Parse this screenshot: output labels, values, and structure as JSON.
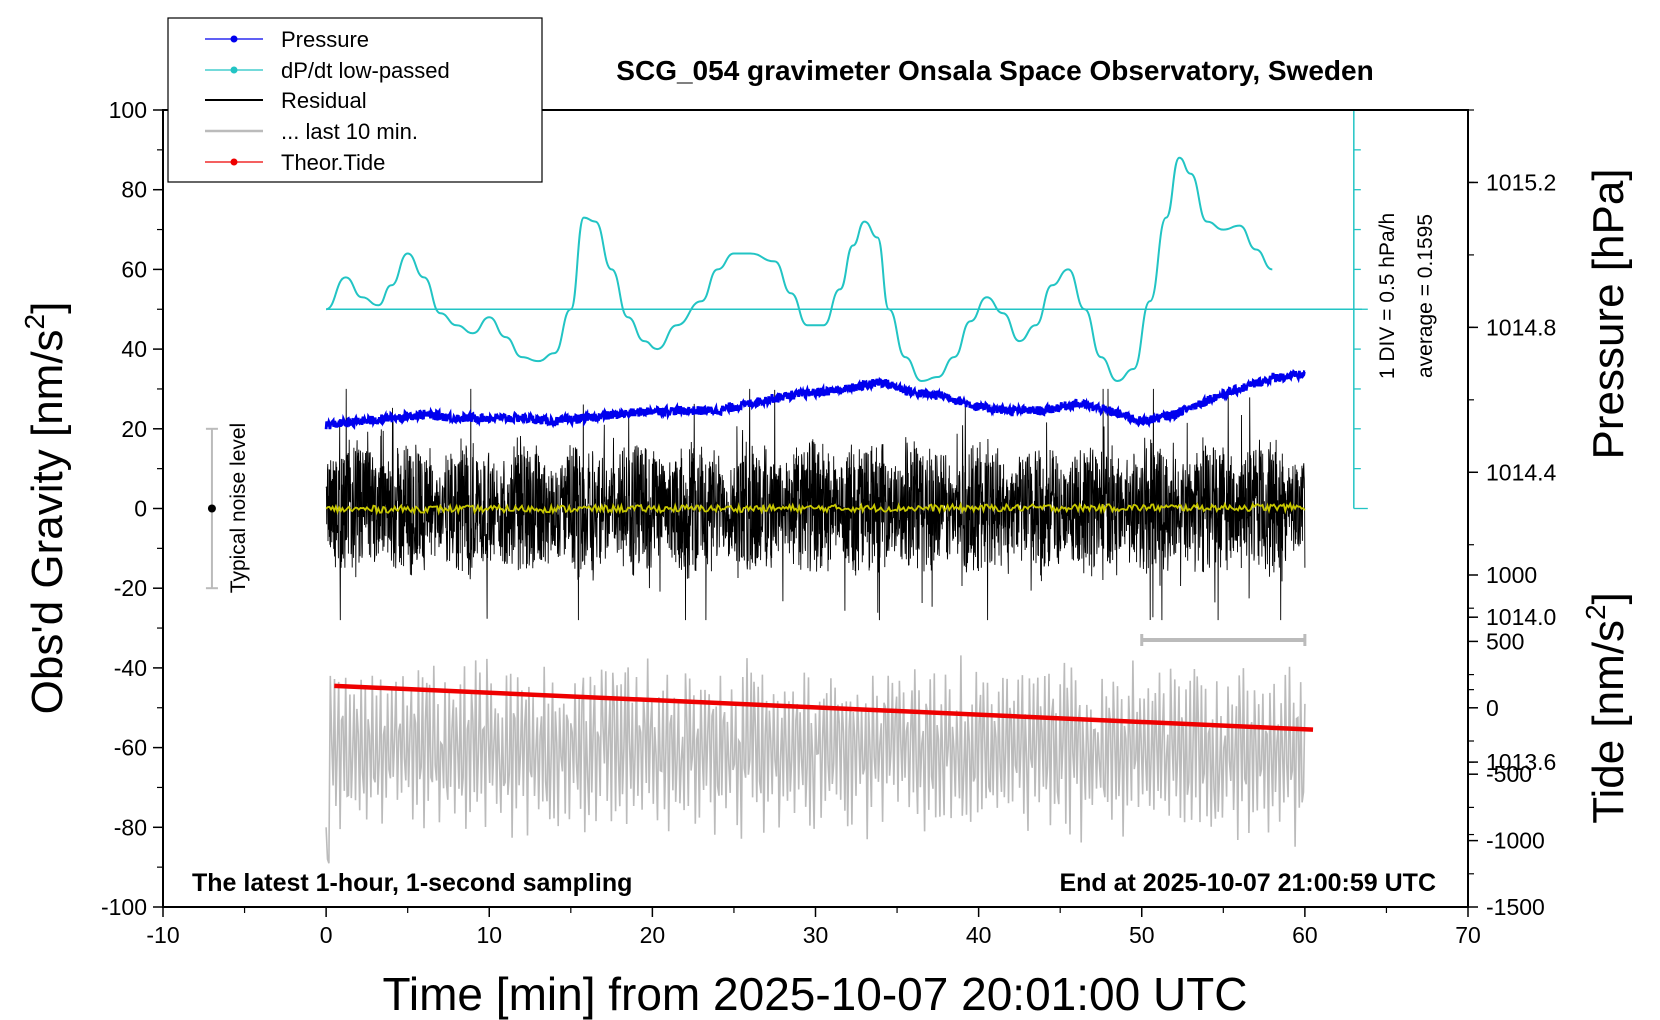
{
  "chart_data": {
    "type": "line",
    "title": "SCG_054 gravimeter Onsala Space Observatory, Sweden",
    "xlabel": "Time [min] from 2025-10-07 20:01:00 UTC",
    "ylabel_main": "Obs'd Gravity [nm/s",
    "ylabel_main_sup": "2",
    "ylabel_main_end": "]",
    "ylabel_pressure": "Pressure [hPa]",
    "ylabel_tide": "Tide [nm/s",
    "ylabel_tide_sup": "2",
    "ylabel_tide_end": "]",
    "xlim": [
      -10,
      70
    ],
    "ylim": [
      -100,
      100
    ],
    "x_ticks": [
      "-10",
      "0",
      "10",
      "20",
      "30",
      "40",
      "50",
      "60",
      "70"
    ],
    "y_ticks": [
      "100",
      "80",
      "60",
      "40",
      "20",
      "0",
      "-20",
      "-40",
      "-60",
      "-80",
      "-100"
    ],
    "pressure_axis": {
      "range": [
        1013.2,
        1015.4
      ],
      "ticks": [
        "1015.2",
        "1014.8",
        "1014.4",
        "1014.0",
        "1013.6"
      ]
    },
    "tide_axis": {
      "range": [
        -1500,
        1000
      ],
      "ticks": [
        "1000",
        "500",
        "0",
        "-500",
        "-1000",
        "-1500"
      ]
    },
    "dpdt_scale": {
      "label": "1 DIV = 0.5 hPa/h",
      "average": "average = 0.1595",
      "x": 63
    },
    "noise_bar": {
      "label": "Typical noise level",
      "x": -7,
      "center": 0,
      "half_range": 20
    },
    "last10_bar": {
      "x_start": 50,
      "x_end": 60,
      "y": -33
    },
    "note_left": "The latest 1-hour, 1-second sampling",
    "note_right": "End at 2025-10-07 21:00:59 UTC",
    "legend": {
      "position": "top-left",
      "items": [
        {
          "name": "Pressure",
          "color": "#0000ee",
          "marker": true
        },
        {
          "name": "dP/dt low-passed",
          "color": "#22c4c4",
          "marker": true
        },
        {
          "name": "Residual",
          "color": "#000000",
          "marker": false
        },
        {
          "name": "... last 10 min.",
          "color": "#bbbbbb",
          "marker": false
        },
        {
          "name": "Theor.Tide",
          "color": "#ee0000",
          "marker": true
        }
      ]
    },
    "series": [
      {
        "name": "Pressure",
        "color": "#0000ee",
        "x": [
          0,
          2,
          4,
          6,
          8,
          10,
          12,
          14,
          16,
          18,
          20,
          22,
          24,
          26,
          28,
          30,
          32,
          34,
          36,
          38,
          40,
          42,
          44,
          46,
          48,
          50,
          52,
          54,
          56,
          58,
          60
        ],
        "values": [
          1014.53,
          1014.54,
          1014.55,
          1014.56,
          1014.55,
          1014.55,
          1014.55,
          1014.54,
          1014.55,
          1014.56,
          1014.57,
          1014.57,
          1014.57,
          1014.59,
          1014.61,
          1014.62,
          1014.63,
          1014.65,
          1014.62,
          1014.61,
          1014.58,
          1014.57,
          1014.57,
          1014.59,
          1014.57,
          1014.54,
          1014.56,
          1014.6,
          1014.63,
          1014.66,
          1014.67
        ]
      },
      {
        "name": "dP/dt low-passed",
        "color": "#22c4c4",
        "x": [
          0,
          1.2,
          2.2,
          3.2,
          4,
          5,
          6,
          7,
          8,
          9,
          10,
          11,
          12,
          13,
          14,
          15,
          15.8,
          16.5,
          17.5,
          18.5,
          19.5,
          20.3,
          21.5,
          23,
          24,
          25,
          26,
          27.5,
          28.5,
          29.5,
          30.5,
          31.5,
          32.3,
          33,
          33.8,
          34.5,
          35.5,
          36.5,
          37.5,
          38.5,
          39.5,
          40.5,
          41.5,
          42.5,
          43.5,
          44.5,
          45.5,
          46.5,
          47.5,
          48.5,
          49.5,
          50.5,
          51.5,
          52.3,
          53,
          54,
          55,
          56,
          57,
          58
        ],
        "values": [
          50,
          58,
          53,
          51,
          56,
          64,
          58,
          49,
          46,
          44,
          48,
          43,
          38,
          37,
          39,
          50,
          73,
          72,
          60,
          48,
          42,
          40,
          46,
          52,
          60,
          64,
          64,
          62,
          54,
          46,
          46,
          55,
          66,
          72,
          68,
          50,
          38,
          32,
          33,
          38,
          47,
          53,
          49,
          42,
          46,
          56,
          60,
          50,
          38,
          32,
          35,
          52,
          73,
          88,
          84,
          72,
          70,
          71,
          65,
          60
        ]
      },
      {
        "name": "Residual",
        "color": "#000000",
        "x_range": [
          0,
          60
        ],
        "envelope": {
          "typical": 12,
          "max": 30,
          "min": -28
        }
      },
      {
        "name": "Residual smoothed",
        "color": "#c8c800",
        "x_range": [
          0,
          60
        ],
        "values_approx": 0.5
      },
      {
        "name": "... last 10 min.",
        "color": "#bbbbbb",
        "x_range": [
          0,
          60
        ],
        "center": -60,
        "envelope": {
          "max": -33,
          "min": -89
        }
      },
      {
        "name": "Theor.Tide",
        "color": "#ee0000",
        "x": [
          0.5,
          60.5
        ],
        "values": [
          -44.5,
          -55.5
        ]
      }
    ]
  }
}
